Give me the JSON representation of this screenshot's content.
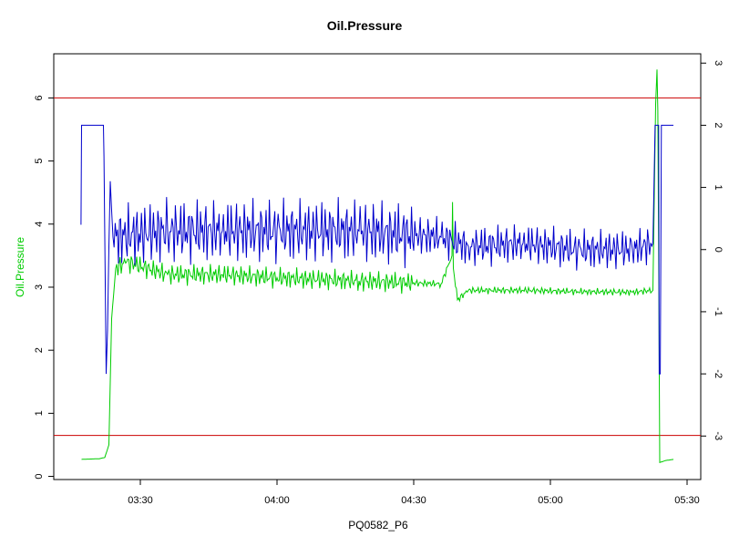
{
  "chart_data": {
    "type": "line",
    "title": "Oil.Pressure",
    "xlabel": "PQ0582_P6",
    "ylabel": "Oil.Pressure",
    "ylabel_right": "",
    "xlim": [
      3.1833,
      5.55
    ],
    "ylim": [
      -0.05,
      6.7
    ],
    "ylim_right": [
      -3.7,
      3.15
    ],
    "x_ticks": [
      3.5,
      4.0,
      4.5,
      5.0,
      5.5
    ],
    "x_tick_labels": [
      "03:30",
      "04:00",
      "04:30",
      "05:00",
      "05:30"
    ],
    "y_ticks": [
      0,
      1,
      2,
      3,
      4,
      5,
      6
    ],
    "y_tick_labels": [
      "0",
      "1",
      "2",
      "3",
      "4",
      "5",
      "6"
    ],
    "y_right_ticks": [
      -3,
      -2,
      -1,
      0,
      1,
      2,
      3
    ],
    "y_right_tick_labels": [
      "-3",
      "-2",
      "-1",
      "0",
      "1",
      "2",
      "3"
    ],
    "hlines": [
      {
        "value": 6.0,
        "color": "#cc0000"
      },
      {
        "value": 0.65,
        "color": "#cc0000"
      }
    ],
    "series": [
      {
        "color": "#00cc00",
        "axis": "left",
        "points": [
          [
            3.285,
            0.27
          ],
          [
            3.35,
            0.28
          ],
          [
            3.37,
            0.3
          ],
          [
            3.385,
            0.5
          ],
          [
            3.395,
            2.5
          ],
          [
            3.41,
            3.3
          ],
          [
            3.45,
            3.4
          ],
          [
            3.6,
            3.2
          ],
          [
            3.8,
            3.2
          ],
          [
            4.0,
            3.15
          ],
          [
            4.3,
            3.1
          ],
          [
            4.6,
            3.05
          ],
          [
            4.64,
            3.5
          ],
          [
            4.642,
            4.35
          ],
          [
            4.645,
            3.3
          ],
          [
            4.66,
            2.8
          ],
          [
            4.7,
            2.95
          ],
          [
            4.9,
            2.95
          ],
          [
            5.1,
            2.93
          ],
          [
            5.3,
            2.92
          ],
          [
            5.375,
            2.95
          ],
          [
            5.385,
            5.9
          ],
          [
            5.39,
            6.45
          ],
          [
            5.393,
            5.8
          ],
          [
            5.4,
            0.22
          ],
          [
            5.42,
            0.25
          ],
          [
            5.45,
            0.27
          ]
        ]
      },
      {
        "color": "#0000cc",
        "axis": "right",
        "points": [
          [
            3.283,
            0.4
          ],
          [
            3.285,
            2.0
          ],
          [
            3.365,
            2.0
          ],
          [
            3.367,
            1.5
          ],
          [
            3.375,
            -2.0
          ],
          [
            3.38,
            -1.3
          ],
          [
            3.39,
            1.1
          ],
          [
            3.4,
            0.2
          ],
          [
            3.6,
            0.3
          ],
          [
            3.8,
            0.3
          ],
          [
            4.0,
            0.3
          ],
          [
            4.3,
            0.3
          ],
          [
            4.6,
            0.2
          ],
          [
            4.7,
            0.05
          ],
          [
            4.9,
            0.1
          ],
          [
            5.1,
            0.0
          ],
          [
            5.3,
            0.0
          ],
          [
            5.375,
            0.1
          ],
          [
            5.383,
            2.0
          ],
          [
            5.396,
            2.0
          ],
          [
            5.398,
            -2.0
          ],
          [
            5.402,
            -2.0
          ],
          [
            5.406,
            2.0
          ],
          [
            5.45,
            2.0
          ]
        ]
      }
    ]
  }
}
